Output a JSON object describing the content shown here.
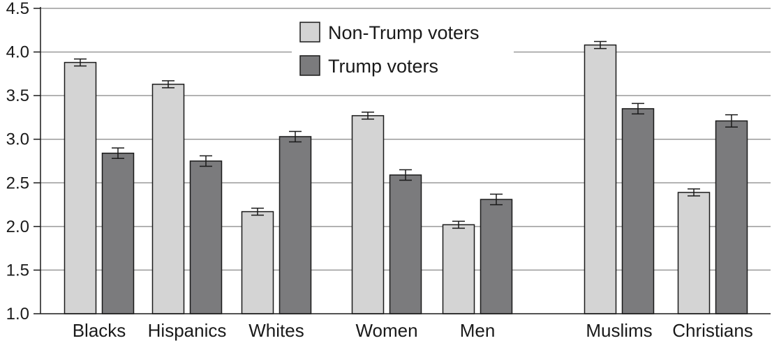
{
  "chart_data": {
    "type": "bar",
    "title": "",
    "xlabel": "",
    "ylabel": "",
    "ylim": [
      1.0,
      4.5
    ],
    "yticks": [
      "1.0",
      "1.5",
      "2.0",
      "2.5",
      "3.0",
      "3.5",
      "4.0",
      "4.5"
    ],
    "grid": "horizontal",
    "legend_position": "top-center",
    "groups": [
      [
        "Blacks",
        "Hispanics",
        "Whites"
      ],
      [
        "Women",
        "Men"
      ],
      [
        "Muslims",
        "Christians"
      ]
    ],
    "categories": [
      "Blacks",
      "Hispanics",
      "Whites",
      "Women",
      "Men",
      "Muslims",
      "Christians"
    ],
    "series": [
      {
        "name": "Non-Trump voters",
        "color": "#d4d4d4",
        "values": [
          3.88,
          3.63,
          2.17,
          3.27,
          2.02,
          4.08,
          2.39
        ],
        "errors": [
          0.04,
          0.04,
          0.04,
          0.04,
          0.04,
          0.04,
          0.04
        ]
      },
      {
        "name": "Trump voters",
        "color": "#7b7b7d",
        "values": [
          2.84,
          2.75,
          3.03,
          2.59,
          2.31,
          3.35,
          3.21
        ],
        "errors": [
          0.06,
          0.06,
          0.06,
          0.06,
          0.06,
          0.06,
          0.07
        ]
      }
    ]
  }
}
